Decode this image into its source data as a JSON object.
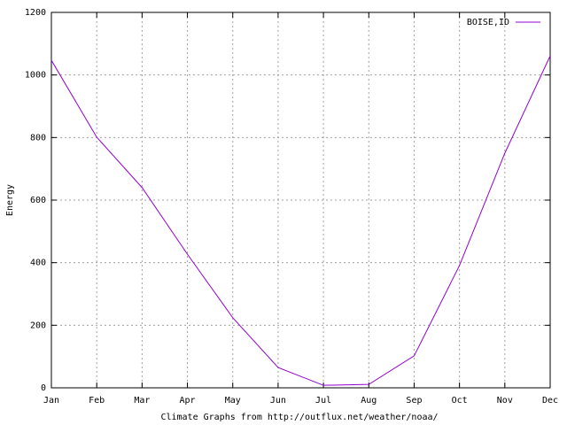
{
  "chart_data": {
    "type": "line",
    "x_label": "Climate Graphs from http://outflux.net/weather/noaa/",
    "y_label": "Energy",
    "categories": [
      "Jan",
      "Feb",
      "Mar",
      "Apr",
      "May",
      "Jun",
      "Jul",
      "Aug",
      "Sep",
      "Oct",
      "Nov",
      "Dec"
    ],
    "series": [
      {
        "name": "BOISE,ID",
        "color": "#9400d3",
        "values": [
          1047,
          801,
          640,
          427,
          224,
          65,
          8,
          11,
          102,
          391,
          750,
          1061
        ]
      }
    ],
    "ylim": [
      0,
      1200
    ],
    "yticks": [
      0,
      200,
      400,
      600,
      800,
      1000,
      1200
    ],
    "grid": true,
    "legend": "top-right"
  }
}
